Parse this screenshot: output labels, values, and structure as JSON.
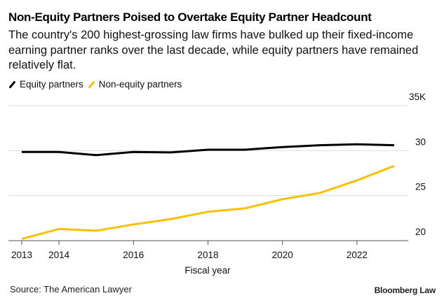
{
  "chart_data": {
    "type": "line",
    "title": "Non-Equity Partners Poised to Overtake Equity Partner Headcount",
    "subtitle": "The country's 200 highest-grossing law firms have bulked up their fixed-income earning partner ranks over the last decade, while equity partners have remained relatively flat.",
    "xlabel": "Fiscal year",
    "ylabel": "",
    "x": [
      2013,
      2014,
      2015,
      2016,
      2017,
      2018,
      2019,
      2020,
      2021,
      2022,
      2023
    ],
    "series": [
      {
        "name": "Equity partners",
        "color": "#000000",
        "values": [
          29.85,
          29.85,
          29.5,
          29.85,
          29.8,
          30.1,
          30.1,
          30.4,
          30.6,
          30.7,
          30.6
        ]
      },
      {
        "name": "Non-equity partners",
        "color": "#fcc000",
        "values": [
          20.2,
          21.3,
          21.1,
          21.8,
          22.4,
          23.2,
          23.6,
          24.6,
          25.3,
          26.7,
          28.3
        ]
      }
    ],
    "xlim": [
      2012.85,
      2023.9
    ],
    "ylim": [
      20,
      35
    ],
    "x_ticks": [
      2013,
      2014,
      2016,
      2018,
      2020,
      2022
    ],
    "x_tick_labels": [
      "2013",
      "2014",
      "2016",
      "2018",
      "2020",
      "2022"
    ],
    "y_ticks": [
      20,
      25,
      30,
      35
    ],
    "y_tick_labels": [
      "20",
      "25",
      "30",
      "35K"
    ],
    "y_units": "thousands",
    "grid": true,
    "legend_position": "top-left",
    "source": "Source: The American Lawyer",
    "brand": "Bloomberg Law"
  }
}
